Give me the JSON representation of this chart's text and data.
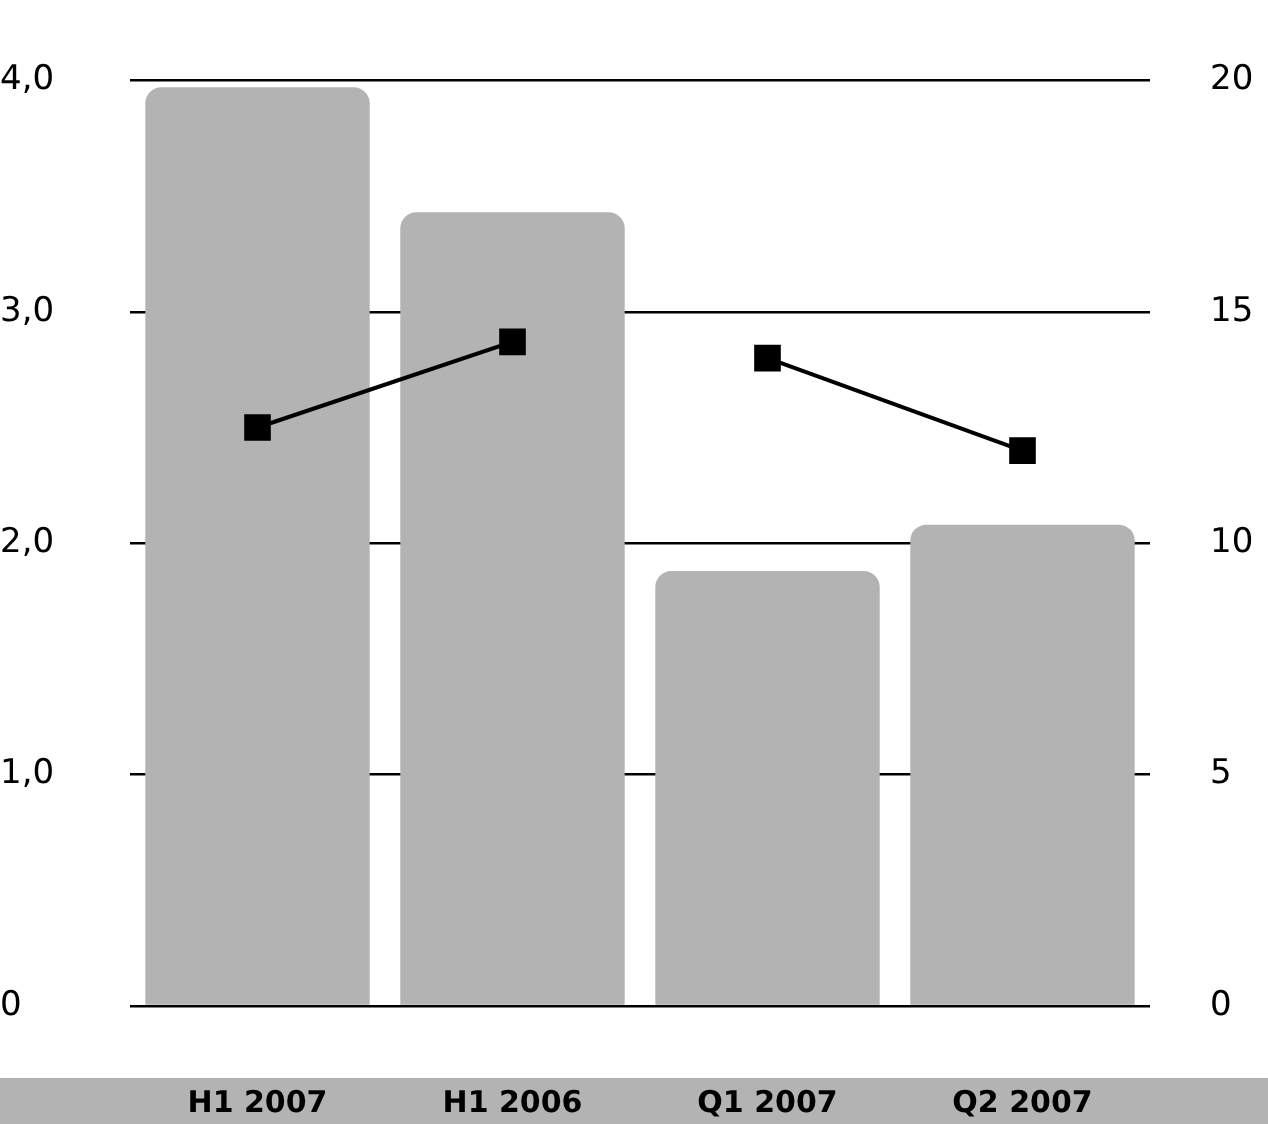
{
  "chart_data": {
    "type": "bar",
    "categories": [
      "H1 2007",
      "H1 2006",
      "Q1 2007",
      "Q2 2007"
    ],
    "series": [
      {
        "color": "#b3b3b3",
        "values": [
          3.97,
          3.43,
          1.88,
          2.08
        ]
      },
      {
        "type": "line",
        "axis": "y2",
        "color": "#000000",
        "values": [
          12.5,
          14.35,
          null,
          null
        ]
      },
      {
        "type": "line",
        "axis": "y2",
        "color": "#000000",
        "values": [
          null,
          null,
          14.0,
          12.0
        ]
      }
    ],
    "ylim": [
      0,
      4
    ],
    "yticks": [
      0,
      {
        "value": 1,
        "label": "1,0"
      },
      {
        "value": 2,
        "label": "2,0"
      },
      {
        "value": 3,
        "label": "3,0"
      },
      {
        "value": 4,
        "label": "4,0"
      }
    ],
    "y2lim": [
      0,
      20
    ],
    "y2ticks": [
      0,
      5,
      10,
      15,
      20
    ],
    "grid": "y",
    "marker": "square"
  }
}
